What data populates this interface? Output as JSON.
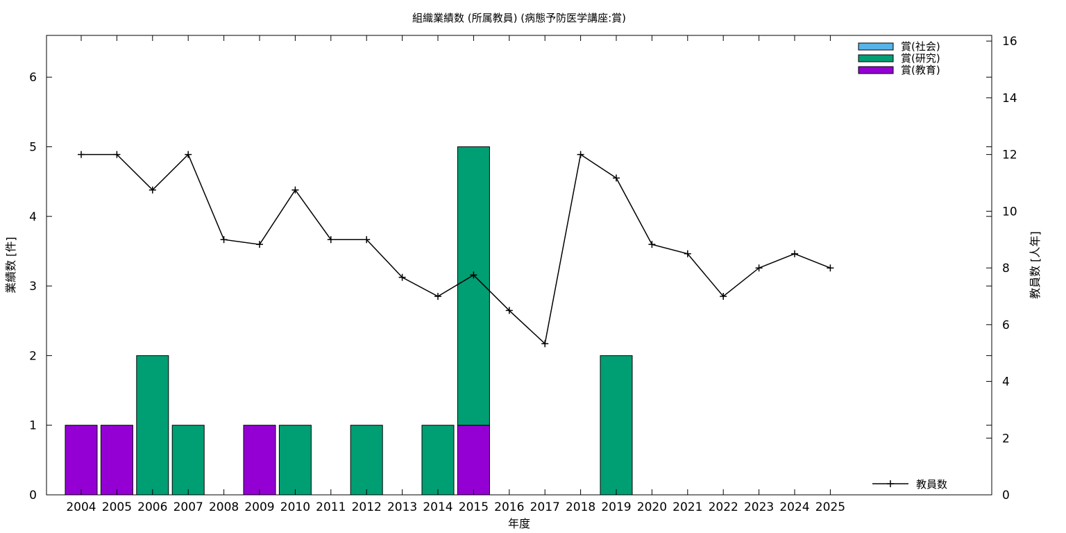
{
  "chart_data": {
    "type": "bar",
    "title": "組織業績数 (所属教員) (病態予防医学講座:賞)",
    "xlabel": "年度",
    "ylabel": "業績数 [件]",
    "y2label": "教員数 [人年]",
    "categories": [
      "2004",
      "2005",
      "2006",
      "2007",
      "2008",
      "2009",
      "2010",
      "2011",
      "2012",
      "2013",
      "2014",
      "2015",
      "2016",
      "2017",
      "2018",
      "2019",
      "2020",
      "2021",
      "2022",
      "2023",
      "2024",
      "2025"
    ],
    "ylim": [
      0,
      6.6
    ],
    "y2lim": [
      0,
      16.2
    ],
    "yticks": [
      "0",
      "1",
      "2",
      "3",
      "4",
      "5",
      "6"
    ],
    "y2ticks": [
      "0",
      "2",
      "4",
      "6",
      "8",
      "10",
      "12",
      "14",
      "16"
    ],
    "stacked": true,
    "series": [
      {
        "name": "賞(教育)",
        "color": "#9400d3",
        "values": [
          1,
          1,
          0,
          0,
          0,
          1,
          0,
          0,
          0,
          0,
          0,
          1,
          0,
          0,
          0,
          0,
          0,
          0,
          0,
          0,
          0,
          0
        ]
      },
      {
        "name": "賞(研究)",
        "color": "#009e73",
        "values": [
          0,
          0,
          2,
          1,
          0,
          0,
          1,
          0,
          1,
          0,
          1,
          4,
          0,
          0,
          0,
          2,
          0,
          0,
          0,
          0,
          0,
          0
        ]
      },
      {
        "name": "賞(社会)",
        "color": "#56b4e9",
        "values": [
          0,
          0,
          0,
          0,
          0,
          0,
          0,
          0,
          0,
          0,
          0,
          0,
          0,
          0,
          0,
          0,
          0,
          0,
          0,
          0,
          0,
          0
        ]
      }
    ],
    "line_series": {
      "name": "教員数",
      "axis": "y2",
      "color": "#000000",
      "values": [
        12,
        12,
        10.75,
        12,
        9,
        8.83,
        10.75,
        9,
        9,
        7.67,
        7,
        7.75,
        6.5,
        5.33,
        12,
        11.17,
        8.83,
        8.5,
        7,
        8,
        8.5,
        8
      ]
    },
    "legend": {
      "bars_position": "top-right",
      "bar_order": [
        "賞(社会)",
        "賞(研究)",
        "賞(教育)"
      ],
      "line_position": "bottom-right"
    },
    "grid": false
  }
}
